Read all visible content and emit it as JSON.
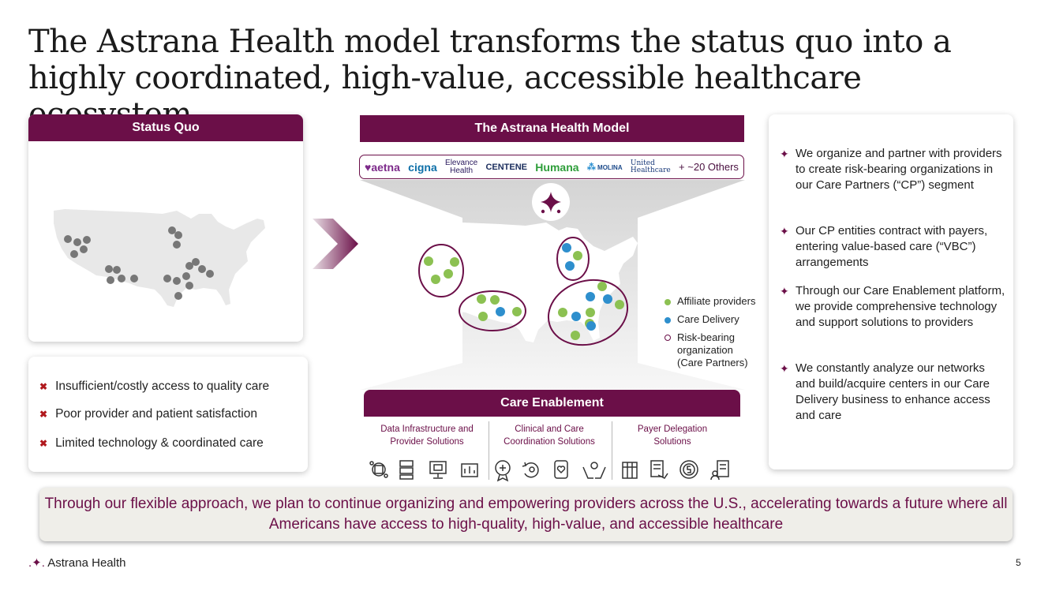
{
  "title": "The Astrana Health model transforms the status quo into a highly coordinated, high-value, accessible healthcare ecosystem",
  "status_quo": {
    "header": "Status Quo",
    "issues": [
      "Insufficient/costly access to quality care",
      "Poor provider and patient satisfaction",
      "Limited technology & coordinated care"
    ]
  },
  "model": {
    "header": "The Astrana Health Model",
    "payers": {
      "aetna": "♥aetna",
      "cigna": "cigna",
      "elevance": "Elevance",
      "elevance_sub": "Health",
      "centene": "CENTENE",
      "humana": "Humana",
      "molina": "MOLINA",
      "united": "United",
      "united_sub": "Healthcare",
      "others": "+ ~20 Others"
    },
    "legend": {
      "affiliate": "Affiliate providers",
      "care_delivery": "Care Delivery",
      "risk_bearing": "Risk-bearing organization (Care Partners)"
    },
    "colors": {
      "affiliate": "#8cc152",
      "care_delivery": "#2e8fcd",
      "ring": "#6b0f48"
    }
  },
  "care_enablement": {
    "header": "Care Enablement",
    "columns": [
      "Data Infrastructure and Provider Solutions",
      "Clinical and Care Coordination Solutions",
      "Payer Delegation Solutions"
    ]
  },
  "bullets": [
    "We organize and partner with providers to create risk-bearing organizations in our Care Partners (“CP”) segment",
    "Our CP entities contract with payers, entering value-based care (“VBC”) arrangements",
    "Through our Care Enablement platform, we provide comprehensive technology and support solutions to providers",
    "We constantly analyze our networks and build/acquire centers in our Care Delivery business to enhance access and care"
  ],
  "banner": "Through our flexible approach, we plan to continue organizing and empowering providers across the U.S., accelerating towards a future where all Americans have access to high-quality, high-value, and accessible healthcare",
  "footer": {
    "logo": "Astrana Health",
    "page": "5"
  }
}
